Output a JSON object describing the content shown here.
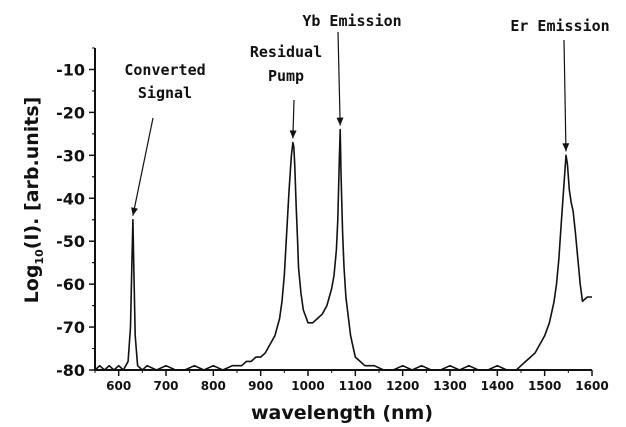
{
  "chart_data": {
    "type": "line",
    "title": "",
    "xlabel": "wavelength (nm)",
    "ylabel_prefix": "Log",
    "ylabel_sub": "10",
    "ylabel_suffix": "(I). [arb.units]",
    "xlim": [
      550,
      1600
    ],
    "ylim": [
      -80,
      -5
    ],
    "x_ticks": [
      "600",
      "700",
      "800",
      "900",
      "1000",
      "1100",
      "1200",
      "1300",
      "1400",
      "1500",
      "1600"
    ],
    "y_ticks": [
      "-10",
      "-20",
      "-30",
      "-40",
      "-50",
      "-60",
      "-70",
      "-80"
    ],
    "grid": false,
    "series": [
      {
        "x": [
          550,
          560,
          570,
          580,
          590,
          600,
          610,
          620,
          625,
          628,
          630,
          632,
          635,
          640,
          650,
          660,
          680,
          700,
          720,
          740,
          760,
          780,
          800,
          820,
          840,
          860,
          870,
          880,
          890,
          900,
          910,
          920,
          930,
          940,
          945,
          950,
          955,
          960,
          965,
          968,
          970,
          972,
          975,
          978,
          980,
          985,
          990,
          1000,
          1010,
          1020,
          1030,
          1040,
          1050,
          1055,
          1060,
          1063,
          1066,
          1068,
          1070,
          1073,
          1076,
          1080,
          1090,
          1100,
          1110,
          1120,
          1140,
          1160,
          1180,
          1200,
          1220,
          1240,
          1260,
          1280,
          1300,
          1320,
          1340,
          1360,
          1380,
          1400,
          1420,
          1440,
          1450,
          1460,
          1470,
          1480,
          1490,
          1500,
          1510,
          1520,
          1525,
          1530,
          1535,
          1540,
          1545,
          1548,
          1552,
          1556,
          1560,
          1565,
          1570,
          1575,
          1580,
          1590,
          1600
        ],
        "y": [
          -80,
          -79,
          -80,
          -79,
          -80,
          -79,
          -80,
          -78,
          -70,
          -55,
          -45,
          -56,
          -72,
          -79,
          -80,
          -79,
          -80,
          -79,
          -80,
          -80,
          -79,
          -80,
          -79,
          -80,
          -79,
          -79,
          -78,
          -78,
          -77,
          -77,
          -76,
          -74,
          -72,
          -68,
          -64,
          -58,
          -48,
          -38,
          -30,
          -27,
          -28,
          -32,
          -42,
          -50,
          -56,
          -62,
          -66,
          -69,
          -69,
          -68,
          -67,
          -65,
          -61,
          -58,
          -52,
          -45,
          -32,
          -24,
          -35,
          -48,
          -56,
          -63,
          -72,
          -77,
          -78,
          -79,
          -79,
          -80,
          -80,
          -79,
          -80,
          -79,
          -80,
          -80,
          -79,
          -80,
          -79,
          -80,
          -80,
          -79,
          -80,
          -80,
          -79,
          -78,
          -77,
          -76,
          -74,
          -72,
          -69,
          -64,
          -60,
          -54,
          -46,
          -38,
          -30,
          -32,
          -38,
          -41,
          -43,
          -48,
          -54,
          -60,
          -64,
          -63,
          -63
        ],
        "color": "#111111"
      }
    ],
    "annotations": [
      {
        "lines": [
          "Converted",
          "Signal"
        ],
        "point": [
          630,
          -45
        ]
      },
      {
        "lines": [
          "Residual",
          "Pump"
        ],
        "point": [
          968,
          -27
        ]
      },
      {
        "lines": [
          "Yb Emission"
        ],
        "point": [
          1068,
          -24
        ]
      },
      {
        "lines": [
          "Er Emission"
        ],
        "point": [
          1545,
          -30
        ]
      }
    ]
  }
}
